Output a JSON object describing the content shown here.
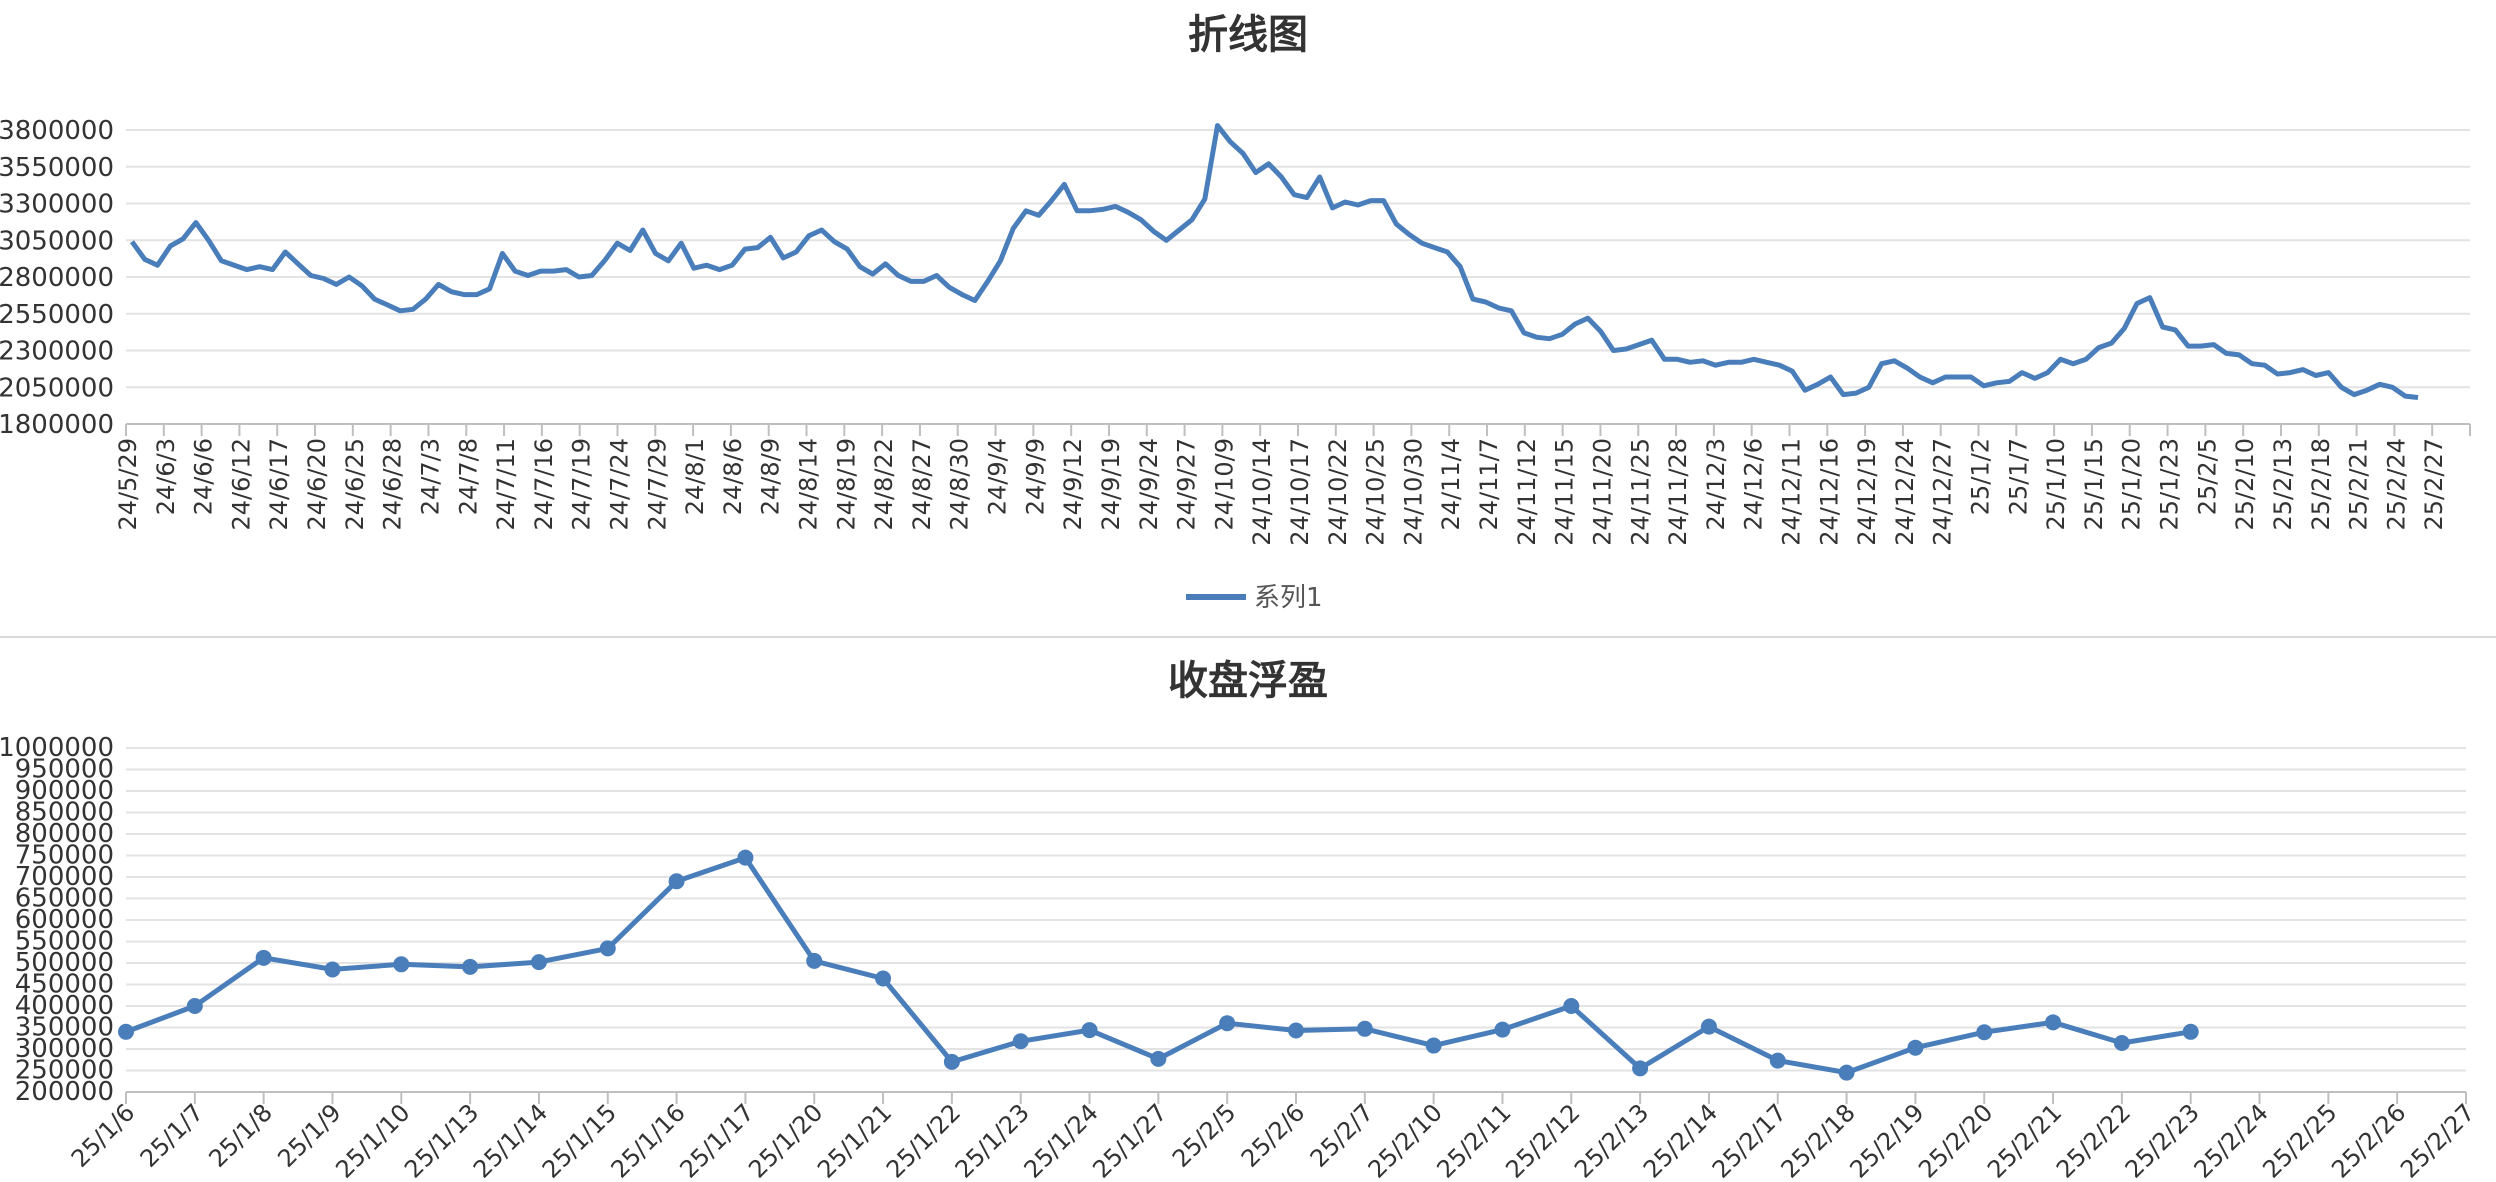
{
  "chart_data": [
    {
      "type": "line",
      "title": "折线图",
      "xlabel": "",
      "ylabel": "",
      "ylim": [
        1800000,
        3800000
      ],
      "yticks": [
        1800000,
        2050000,
        2300000,
        2550000,
        2800000,
        3050000,
        3300000,
        3550000,
        3800000
      ],
      "tick_labels": [
        "24/5/29",
        "24/6/3",
        "24/6/6",
        "24/6/12",
        "24/6/17",
        "24/6/20",
        "24/6/25",
        "24/6/28",
        "24/7/3",
        "24/7/8",
        "24/7/11",
        "24/7/16",
        "24/7/19",
        "24/7/24",
        "24/7/29",
        "24/8/1",
        "24/8/6",
        "24/8/9",
        "24/8/14",
        "24/8/19",
        "24/8/22",
        "24/8/27",
        "24/8/30",
        "24/9/4",
        "24/9/9",
        "24/9/12",
        "24/9/19",
        "24/9/24",
        "24/9/27",
        "24/10/9",
        "24/10/14",
        "24/10/17",
        "24/10/22",
        "24/10/25",
        "24/10/30",
        "24/11/4",
        "24/11/7",
        "24/11/12",
        "24/11/15",
        "24/11/20",
        "24/11/25",
        "24/11/28",
        "24/12/3",
        "24/12/6",
        "24/12/11",
        "24/12/16",
        "24/12/19",
        "24/12/24",
        "24/12/27",
        "25/1/2",
        "25/1/7",
        "25/1/10",
        "25/1/15",
        "25/1/20",
        "25/1/23",
        "25/2/5",
        "25/2/10",
        "25/2/13",
        "25/2/18",
        "25/2/21",
        "25/2/24",
        "25/2/27"
      ],
      "legend": {
        "position": "bottom",
        "entries": [
          "系列1"
        ]
      },
      "grid": true,
      "series": [
        {
          "name": "系列1",
          "color": "#4a7ebb",
          "values": [
            3040000,
            2920000,
            2880000,
            3010000,
            3060000,
            3170000,
            3050000,
            2910000,
            2880000,
            2850000,
            2870000,
            2850000,
            2970000,
            2890000,
            2810000,
            2790000,
            2750000,
            2800000,
            2740000,
            2650000,
            2610000,
            2570000,
            2580000,
            2650000,
            2750000,
            2700000,
            2680000,
            2680000,
            2720000,
            2960000,
            2840000,
            2810000,
            2840000,
            2840000,
            2850000,
            2800000,
            2810000,
            2910000,
            3030000,
            2980000,
            3120000,
            2960000,
            2910000,
            3030000,
            2860000,
            2880000,
            2850000,
            2880000,
            2990000,
            3000000,
            3070000,
            2930000,
            2970000,
            3080000,
            3120000,
            3040000,
            2990000,
            2870000,
            2820000,
            2890000,
            2810000,
            2770000,
            2770000,
            2810000,
            2730000,
            2680000,
            2640000,
            2770000,
            2910000,
            3130000,
            3250000,
            3220000,
            3320000,
            3430000,
            3250000,
            3250000,
            3260000,
            3280000,
            3240000,
            3190000,
            3110000,
            3050000,
            3120000,
            3190000,
            3330000,
            3830000,
            3720000,
            3640000,
            3510000,
            3570000,
            3480000,
            3360000,
            3340000,
            3480000,
            3270000,
            3310000,
            3290000,
            3320000,
            3320000,
            3160000,
            3090000,
            3030000,
            3000000,
            2970000,
            2870000,
            2650000,
            2630000,
            2590000,
            2570000,
            2420000,
            2390000,
            2380000,
            2410000,
            2480000,
            2520000,
            2430000,
            2300000,
            2310000,
            2340000,
            2370000,
            2240000,
            2240000,
            2220000,
            2230000,
            2200000,
            2220000,
            2220000,
            2240000,
            2220000,
            2200000,
            2160000,
            2030000,
            2070000,
            2120000,
            2000000,
            2010000,
            2050000,
            2210000,
            2230000,
            2180000,
            2120000,
            2080000,
            2120000,
            2120000,
            2120000,
            2060000,
            2080000,
            2090000,
            2150000,
            2110000,
            2150000,
            2240000,
            2210000,
            2240000,
            2320000,
            2350000,
            2450000,
            2620000,
            2660000,
            2460000,
            2440000,
            2330000,
            2330000,
            2340000,
            2280000,
            2270000,
            2210000,
            2200000,
            2140000,
            2150000,
            2170000,
            2130000,
            2150000,
            2050000,
            2000000,
            2030000,
            2070000,
            2050000,
            1990000,
            1980000
          ]
        }
      ]
    },
    {
      "type": "line",
      "title": "收盘浮盈",
      "xlabel": "",
      "ylabel": "",
      "ylim": [
        200000,
        1000000
      ],
      "yticks": [
        200000,
        250000,
        300000,
        350000,
        400000,
        450000,
        500000,
        550000,
        600000,
        650000,
        700000,
        750000,
        800000,
        850000,
        900000,
        950000,
        1000000
      ],
      "categories": [
        "25/1/6",
        "25/1/7",
        "25/1/8",
        "25/1/9",
        "25/1/10",
        "25/1/13",
        "25/1/14",
        "25/1/15",
        "25/1/16",
        "25/1/17",
        "25/1/20",
        "25/1/21",
        "25/1/22",
        "25/1/23",
        "25/1/24",
        "25/1/27",
        "25/2/5",
        "25/2/6",
        "25/2/7",
        "25/2/10",
        "25/2/11",
        "25/2/12",
        "25/2/13",
        "25/2/14",
        "25/2/17",
        "25/2/18",
        "25/2/19",
        "25/2/20",
        "25/2/21",
        "25/2/22",
        "25/2/23",
        "25/2/24",
        "25/2/25",
        "25/2/26",
        "25/2/27"
      ],
      "grid": true,
      "series": [
        {
          "color": "#4a7ebb",
          "markers": true,
          "values": [
            340000,
            400000,
            512000,
            485000,
            497000,
            491000,
            502000,
            534000,
            690000,
            745000,
            505000,
            464000,
            270000,
            318000,
            344000,
            277000,
            360000,
            343000,
            347000,
            308000,
            345000,
            400000,
            255000,
            352000,
            273000,
            245000,
            303000,
            339000,
            362000,
            314000,
            340000,
            null,
            null,
            null,
            null
          ]
        }
      ]
    }
  ]
}
